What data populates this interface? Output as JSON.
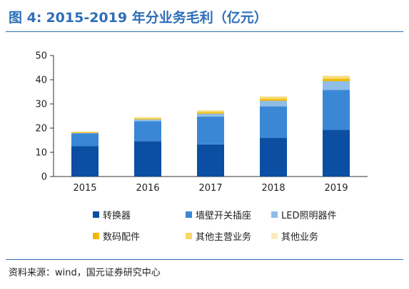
{
  "figure": {
    "number": "图 4:",
    "title": "2015-2019 年分业务毛利（亿元）",
    "source": "资料来源：wind，国元证券研究中心"
  },
  "chart_data": {
    "type": "bar",
    "stacked": true,
    "categories": [
      "2015",
      "2016",
      "2017",
      "2018",
      "2019"
    ],
    "ylim": [
      0,
      50
    ],
    "yticks": [
      0,
      10,
      20,
      30,
      40,
      50
    ],
    "grid": false,
    "legend_position": "bottom",
    "series": [
      {
        "name": "转换器",
        "color": "#0b4ea2",
        "values": [
          12.5,
          14.6,
          13.3,
          16.0,
          19.3
        ]
      },
      {
        "name": "墙壁开关插座",
        "color": "#3a87d6",
        "values": [
          5.3,
          8.2,
          11.4,
          13.0,
          16.5
        ]
      },
      {
        "name": "LED照明器件",
        "color": "#8fbde6",
        "values": [
          0.2,
          0.8,
          1.3,
          2.3,
          3.6
        ]
      },
      {
        "name": "数码配件",
        "color": "#f2b800",
        "values": [
          0.3,
          0.3,
          0.5,
          0.7,
          0.9
        ]
      },
      {
        "name": "其他主营业务",
        "color": "#f7d86b",
        "values": [
          0.2,
          0.5,
          0.7,
          0.9,
          1.1
        ]
      },
      {
        "name": "其他业务",
        "color": "#fbecc0",
        "values": [
          0.1,
          0.2,
          0.2,
          0.3,
          0.4
        ]
      }
    ]
  }
}
